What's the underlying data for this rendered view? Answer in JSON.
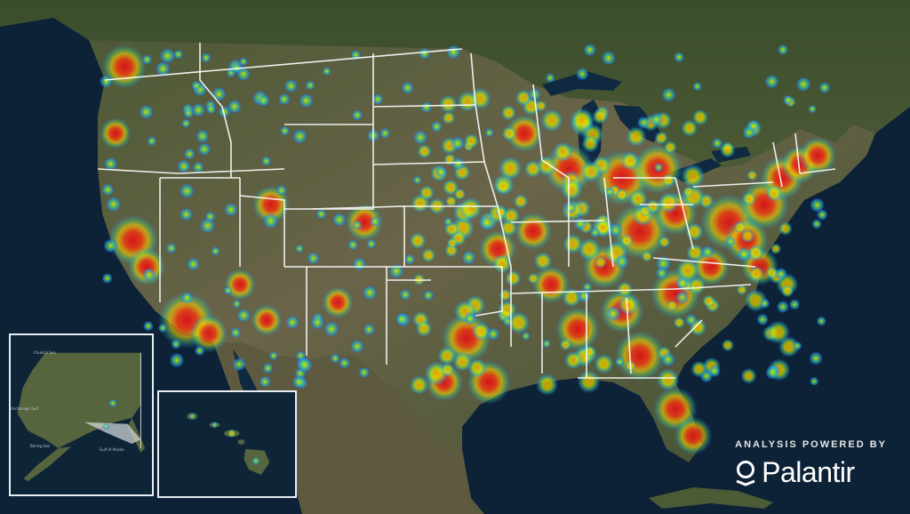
{
  "branding": {
    "tagline": "ANALYSIS POWERED BY",
    "name": "Palantir",
    "logo_icon": "palantir-logo-icon"
  },
  "map": {
    "type": "heatmap",
    "region": "contiguous United States",
    "colors": {
      "ocean": "#0d2236",
      "land": "#4f5a3a",
      "state_border": "#ffffff",
      "heat_low": "#2b6cff",
      "heat_mid": "#f4e100",
      "heat_high": "#e0151a"
    }
  },
  "insets": {
    "alaska": {
      "labels": [
        "Chukchi Sea",
        "Anchorage Gulf",
        "Bering Sea",
        "Gulf of Alaska"
      ]
    },
    "hawaii": {
      "labels": []
    }
  }
}
